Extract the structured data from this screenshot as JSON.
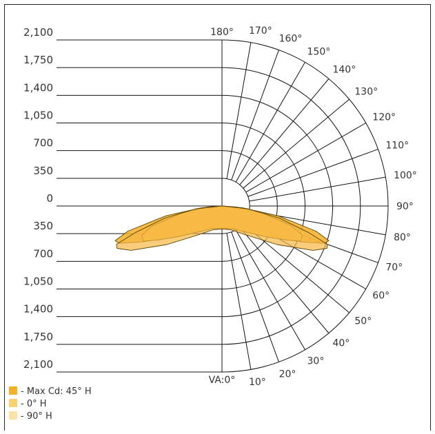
{
  "chart_data": {
    "type": "polar-photometric",
    "title": "",
    "vertical_ticks_upper": [
      "2,100",
      "1,750",
      "1,400",
      "1,050",
      "700",
      "350",
      "0"
    ],
    "vertical_ticks_lower": [
      "350",
      "700",
      "1,050",
      "1,400",
      "1,750",
      "2,100"
    ],
    "radial_max_cd": 2100,
    "radial_step_cd": 350,
    "angle_labels": [
      "VA:0°",
      "10°",
      "20°",
      "30°",
      "40°",
      "50°",
      "60°",
      "70°",
      "80°",
      "90°",
      "100°",
      "110°",
      "120°",
      "130°",
      "140°",
      "150°",
      "160°",
      "170°",
      "180°"
    ],
    "series": [
      {
        "name": "Max Cd: 45° H",
        "color": "#F5B027",
        "points": [
          {
            "angle": 0,
            "cd": 290
          },
          {
            "angle": 20,
            "cd": 300
          },
          {
            "angle": 35,
            "cd": 380
          },
          {
            "angle": 50,
            "cd": 560
          },
          {
            "angle": 60,
            "cd": 820
          },
          {
            "angle": 66,
            "cd": 1120
          },
          {
            "angle": 70,
            "cd": 1380
          },
          {
            "angle": 72,
            "cd": 1420
          },
          {
            "angle": 75,
            "cd": 1230
          },
          {
            "angle": 80,
            "cd": 720
          },
          {
            "angle": 85,
            "cd": 260
          },
          {
            "angle": 90,
            "cd": 0
          }
        ]
      },
      {
        "name": "0° H",
        "color": "#F9C24A",
        "points": [
          {
            "angle": 0,
            "cd": 290
          },
          {
            "angle": 20,
            "cd": 300
          },
          {
            "angle": 40,
            "cd": 420
          },
          {
            "angle": 55,
            "cd": 680
          },
          {
            "angle": 62,
            "cd": 920
          },
          {
            "angle": 66,
            "cd": 1090
          },
          {
            "angle": 70,
            "cd": 1080
          },
          {
            "angle": 74,
            "cd": 920
          },
          {
            "angle": 80,
            "cd": 520
          },
          {
            "angle": 86,
            "cd": 180
          },
          {
            "angle": 90,
            "cd": 0
          }
        ]
      },
      {
        "name": "90° H",
        "color": "#F7B843",
        "points": [
          {
            "angle": 0,
            "cd": 290
          },
          {
            "angle": 20,
            "cd": 320
          },
          {
            "angle": 40,
            "cd": 480
          },
          {
            "angle": 55,
            "cd": 850
          },
          {
            "angle": 64,
            "cd": 1280
          },
          {
            "angle": 68,
            "cd": 1430
          },
          {
            "angle": 70,
            "cd": 1420
          },
          {
            "angle": 73,
            "cd": 1140
          },
          {
            "angle": 78,
            "cd": 740
          },
          {
            "angle": 84,
            "cd": 330
          },
          {
            "angle": 90,
            "cd": 0
          }
        ]
      }
    ]
  },
  "legend": [
    {
      "label": "- Max Cd: 45° H",
      "color": "#F5B027"
    },
    {
      "label": "- 0° H",
      "color": "#F9D26E"
    },
    {
      "label": "- 90° H",
      "color": "#FBE3A8"
    }
  ]
}
